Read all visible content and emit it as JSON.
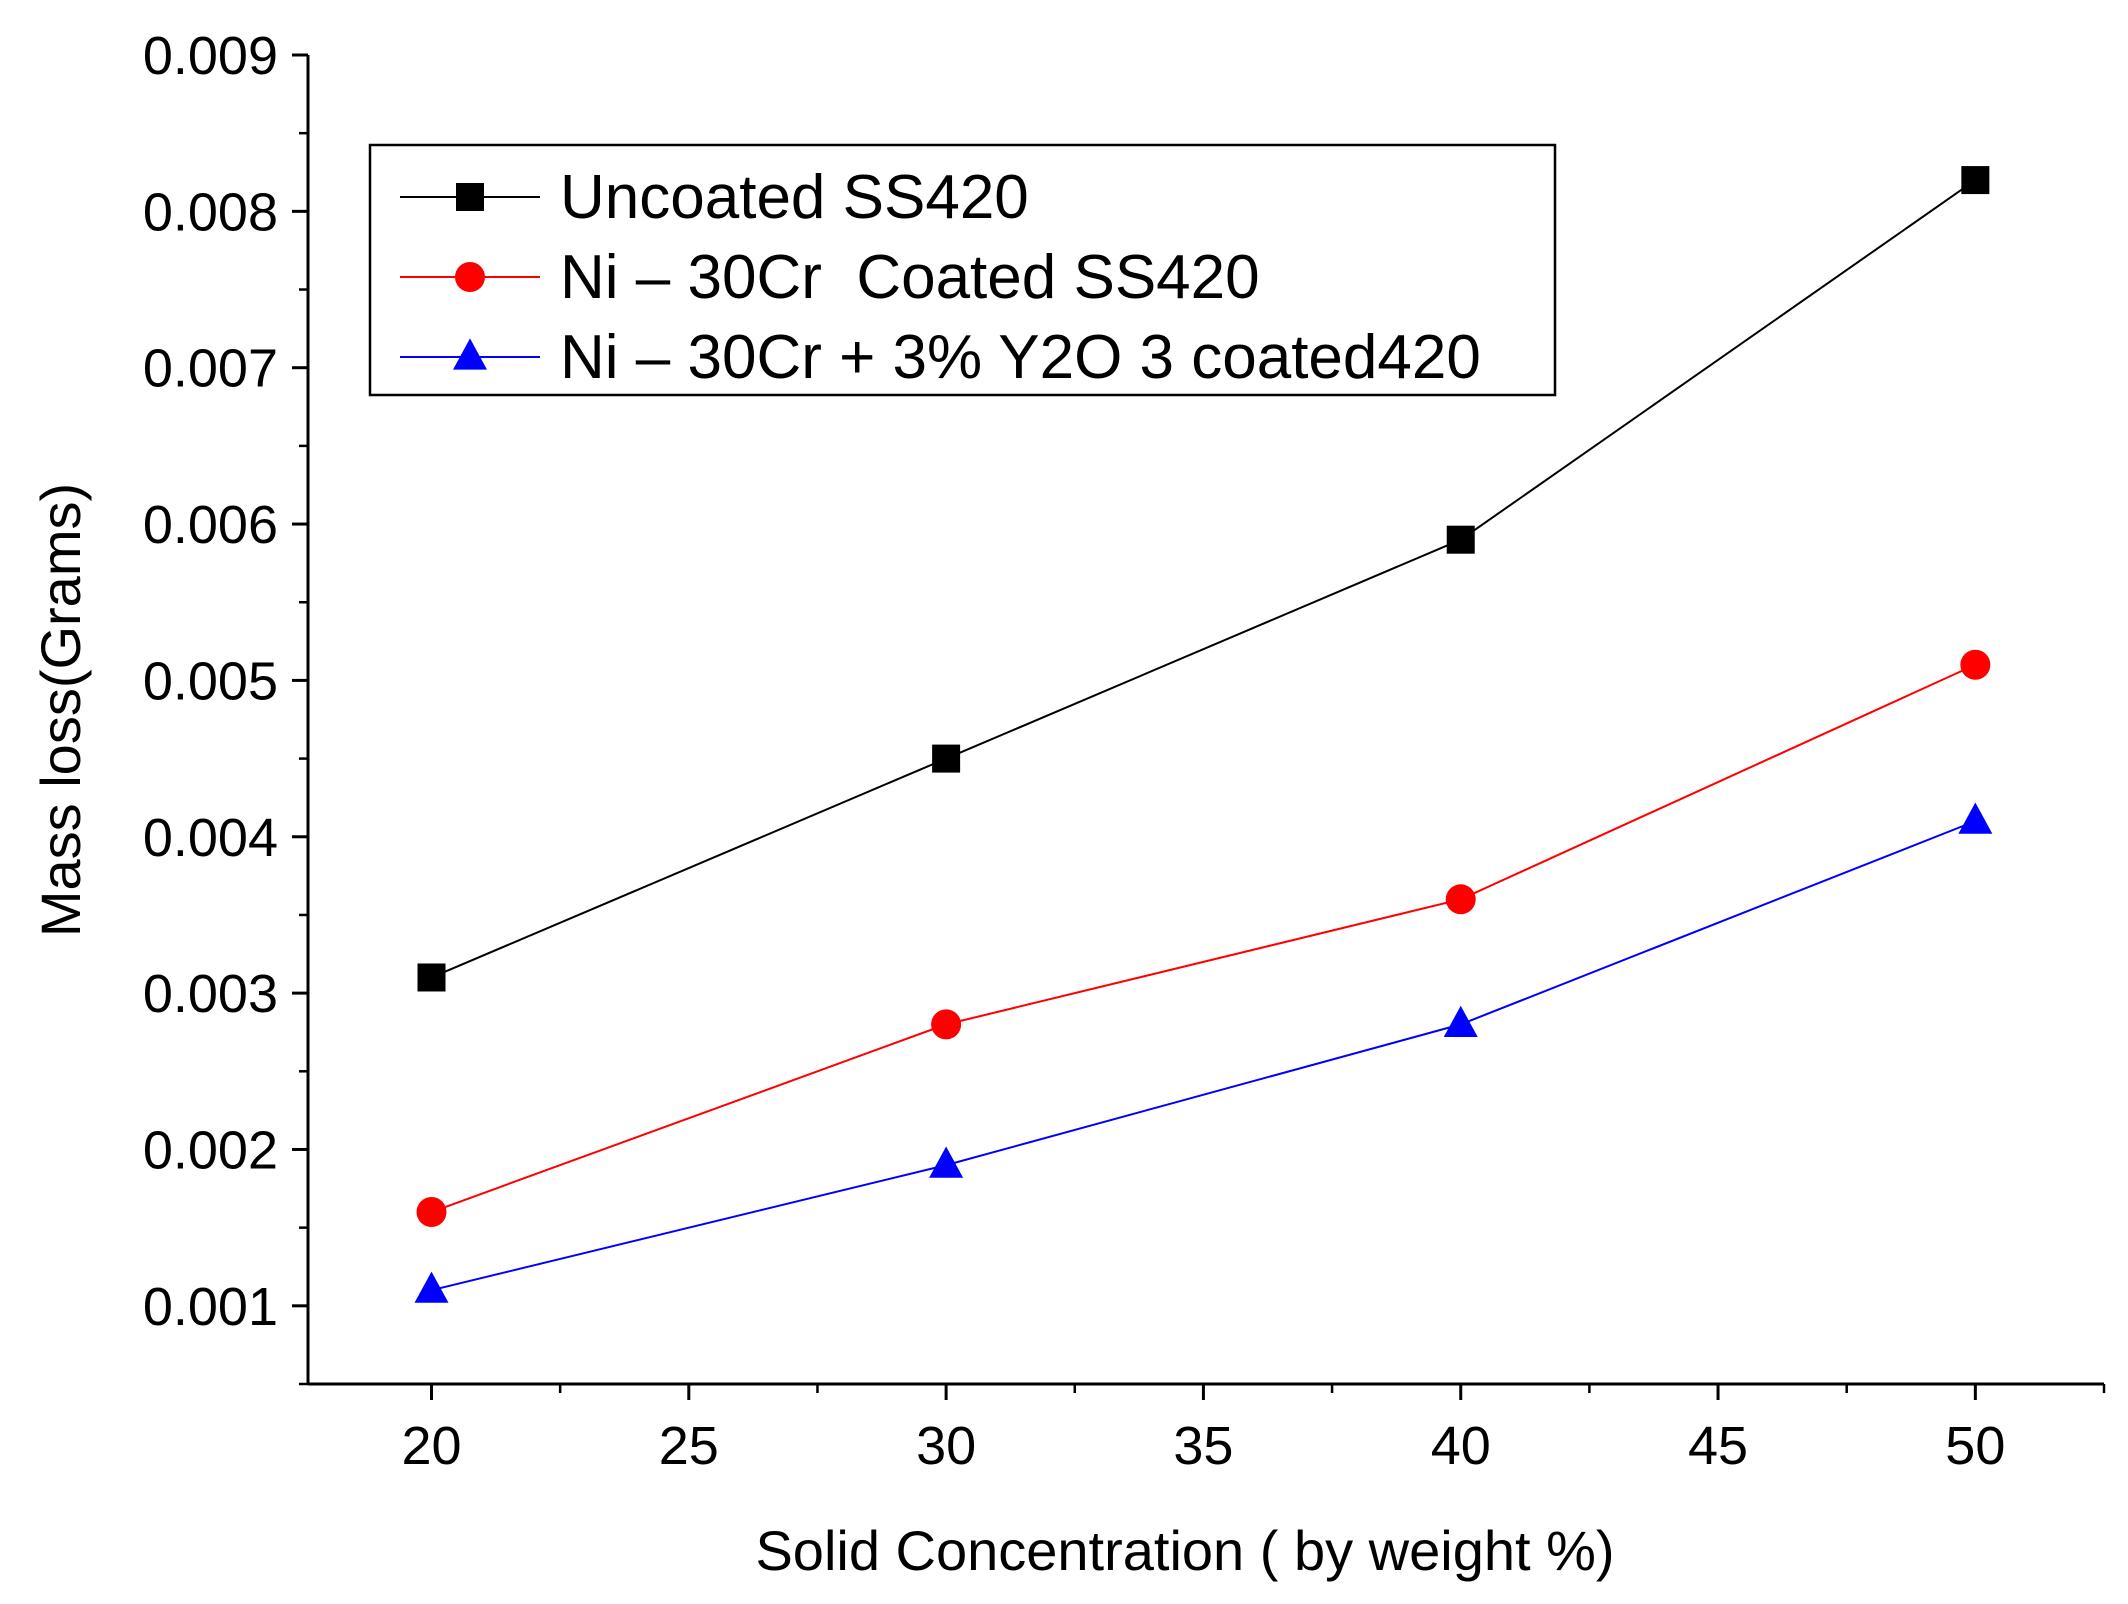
{
  "chart_data": {
    "type": "line",
    "xlabel": "Solid Concentration ( by weight %)",
    "ylabel": "Mass loss(Grams)",
    "xlim": [
      17.6,
      52.5
    ],
    "ylim": [
      0.0005,
      0.009
    ],
    "x_ticks": [
      "20",
      "25",
      "30",
      "35",
      "40",
      "45",
      "50"
    ],
    "y_ticks": [
      "0.001",
      "0.002",
      "0.003",
      "0.004",
      "0.005",
      "0.006",
      "0.007",
      "0.008",
      "0.009"
    ],
    "legend_position": "top-left",
    "grid": false,
    "x": [
      20,
      30,
      40,
      50
    ],
    "series": [
      {
        "name": "Uncoated SS420",
        "color": "#000000",
        "marker": "square",
        "values": [
          0.0031,
          0.0045,
          0.0059,
          0.0082
        ]
      },
      {
        "name": "Ni – 30Cr  Coated SS420",
        "color": "#ff0000",
        "marker": "circle",
        "values": [
          0.0016,
          0.0028,
          0.0036,
          0.0051
        ]
      },
      {
        "name": "Ni – 30Cr + 3% Y2O 3 coated420",
        "color": "#0000ff",
        "marker": "triangle",
        "values": [
          0.0011,
          0.0019,
          0.0028,
          0.0041
        ]
      }
    ]
  }
}
